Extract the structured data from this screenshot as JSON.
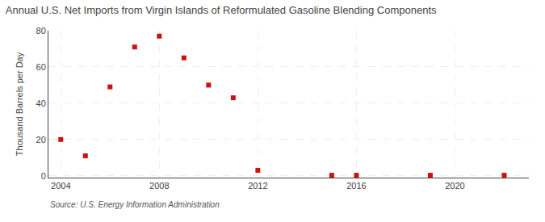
{
  "chart_data": {
    "type": "scatter",
    "title": "Annual U.S. Net Imports from Virgin Islands of Reformulated Gasoline Blending Components",
    "ylabel": "Thousand Barrels per Day",
    "annotations": [
      "Source: U.S. Energy Information Administration"
    ],
    "x": [
      2004,
      2005,
      2006,
      2007,
      2008,
      2009,
      2010,
      2011,
      2012,
      2015,
      2016,
      2019,
      2022
    ],
    "values": [
      20,
      11,
      49,
      71,
      77,
      65,
      50,
      43,
      3,
      0.3,
      0.3,
      0.3,
      0.3
    ],
    "color": "#cc1111",
    "marker": "square",
    "xlim": [
      2003.5,
      2023
    ],
    "ylim": [
      -1,
      80
    ],
    "xticks": [
      2004,
      2008,
      2012,
      2016,
      2020
    ],
    "yticks": [
      0,
      20,
      40,
      60,
      80
    ],
    "grid": true
  }
}
